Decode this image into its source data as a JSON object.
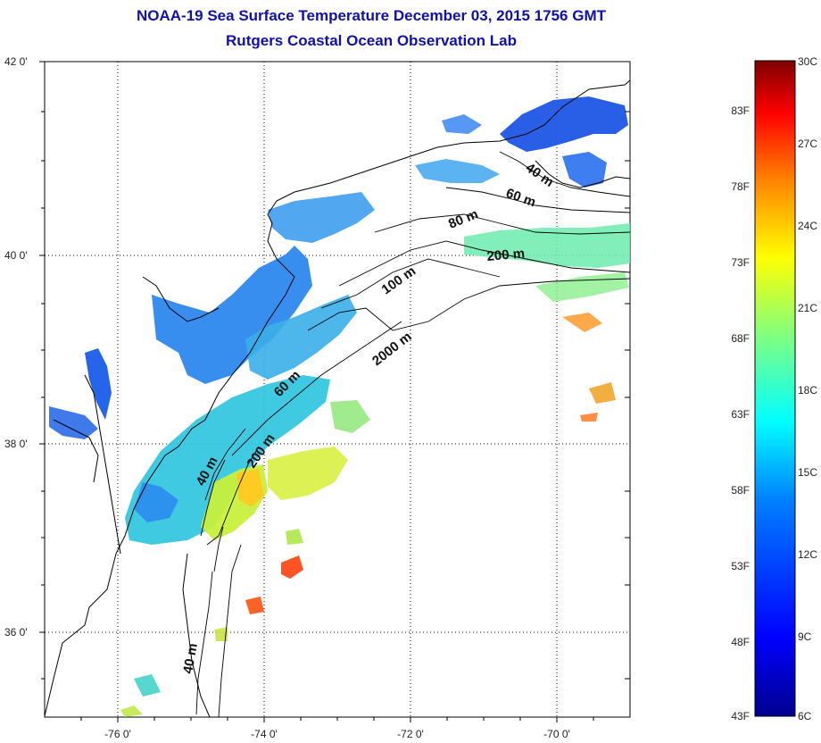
{
  "title": {
    "line1": "NOAA-19 Sea Surface Temperature December 03, 2015 1756 GMT",
    "line2": "Rutgers Coastal Ocean Observation Lab"
  },
  "map": {
    "lat_labels": [
      "42 0'",
      "40 0'",
      "38 0'",
      "36 0'"
    ],
    "lon_labels": [
      "-76 0'",
      "-74 0'",
      "-72 0'",
      "-70 0'"
    ],
    "contour_labels": [
      "40 m",
      "60 m",
      "80 m",
      "200 m",
      "100 m",
      "2000 m",
      "60 m",
      "200 m",
      "40 m",
      "40 m"
    ]
  },
  "colorbar": {
    "fahrenheit": [
      "83F",
      "78F",
      "73F",
      "68F",
      "63F",
      "58F",
      "53F",
      "48F",
      "43F"
    ],
    "celsius": [
      "30C",
      "27C",
      "24C",
      "21C",
      "18C",
      "15C",
      "12C",
      "9C",
      "6C"
    ],
    "colors": [
      "#7f0000",
      "#ff0000",
      "#ff8000",
      "#ffff00",
      "#80ff80",
      "#00ffff",
      "#0080ff",
      "#0000ff",
      "#00008f"
    ]
  }
}
